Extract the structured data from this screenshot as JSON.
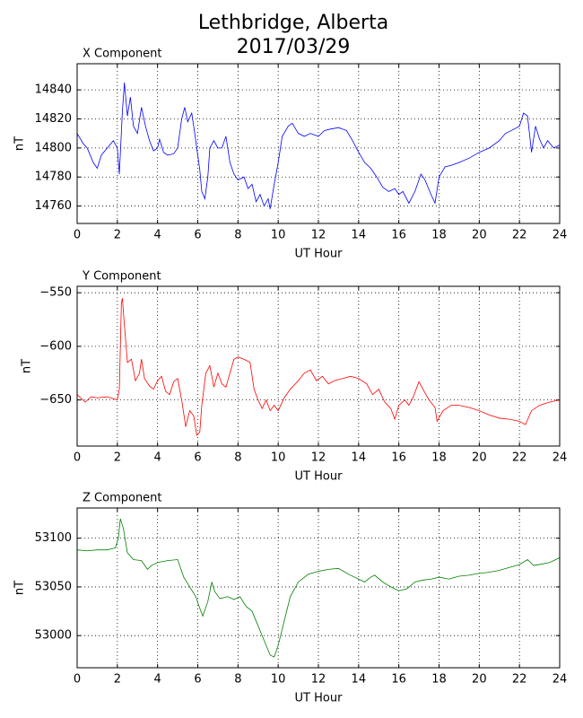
{
  "title": [
    "Lethbridge, Alberta",
    "2017/03/29"
  ],
  "chart_data": [
    {
      "type": "line",
      "title": "X Component",
      "xlabel": "UT Hour",
      "ylabel": "nT",
      "color": "#0000ff",
      "grid": true,
      "xlim": [
        0,
        24
      ],
      "xticks": [
        0,
        2,
        4,
        6,
        8,
        10,
        12,
        14,
        16,
        18,
        20,
        22,
        24
      ],
      "ylim": [
        14748,
        14858
      ],
      "yticks": [
        14760,
        14780,
        14800,
        14820,
        14840
      ],
      "x": [
        0,
        0.3,
        0.5,
        0.8,
        1,
        1.2,
        1.5,
        1.8,
        2.0,
        2.1,
        2.25,
        2.35,
        2.5,
        2.65,
        2.8,
        3,
        3.2,
        3.4,
        3.6,
        3.8,
        4,
        4.1,
        4.3,
        4.5,
        4.8,
        5,
        5.2,
        5.35,
        5.5,
        5.7,
        5.85,
        6,
        6.1,
        6.2,
        6.35,
        6.5,
        6.6,
        6.8,
        7,
        7.2,
        7.4,
        7.6,
        7.8,
        8,
        8.3,
        8.5,
        8.7,
        8.9,
        9.1,
        9.3,
        9.5,
        9.6,
        9.8,
        10,
        10.2,
        10.5,
        10.7,
        11,
        11.3,
        11.6,
        12,
        12.3,
        12.6,
        13,
        13.4,
        13.7,
        14,
        14.3,
        14.6,
        14.9,
        15.2,
        15.5,
        15.8,
        16,
        16.2,
        16.5,
        16.8,
        17.1,
        17.3,
        17.6,
        17.8,
        18,
        18.3,
        18.6,
        19,
        19.5,
        20,
        20.5,
        21,
        21.3,
        21.6,
        22,
        22.2,
        22.4,
        22.6,
        22.8,
        23,
        23.2,
        23.4,
        23.7,
        24
      ],
      "values": [
        14810,
        14803,
        14800,
        14790,
        14786,
        14795,
        14800,
        14805,
        14800,
        14782,
        14825,
        14845,
        14822,
        14835,
        14815,
        14810,
        14828,
        14815,
        14805,
        14798,
        14800,
        14806,
        14797,
        14795,
        14796,
        14800,
        14820,
        14828,
        14818,
        14824,
        14810,
        14795,
        14785,
        14770,
        14765,
        14780,
        14800,
        14805,
        14800,
        14800,
        14808,
        14790,
        14782,
        14778,
        14780,
        14772,
        14775,
        14763,
        14768,
        14760,
        14765,
        14758,
        14775,
        14790,
        14808,
        14815,
        14817,
        14810,
        14808,
        14810,
        14808,
        14812,
        14813,
        14814,
        14812,
        14805,
        14797,
        14790,
        14786,
        14780,
        14773,
        14770,
        14772,
        14768,
        14770,
        14762,
        14770,
        14782,
        14778,
        14768,
        14762,
        14780,
        14787,
        14788,
        14790,
        14793,
        14797,
        14800,
        14805,
        14810,
        14812,
        14815,
        14824,
        14822,
        14797,
        14815,
        14806,
        14800,
        14805,
        14800,
        14802
      ]
    },
    {
      "type": "line",
      "title": "Y Component",
      "xlabel": "UT Hour",
      "ylabel": "nT",
      "color": "#ff0000",
      "grid": true,
      "xlim": [
        0,
        24
      ],
      "xticks": [
        0,
        2,
        4,
        6,
        8,
        10,
        12,
        14,
        16,
        18,
        20,
        22,
        24
      ],
      "ylim": [
        -693,
        -544
      ],
      "yticks": [
        {
          "value": -550,
          "label": "−550"
        },
        {
          "value": -600,
          "label": "−600"
        },
        {
          "value": -650,
          "label": "−650"
        }
      ],
      "x": [
        0,
        0.4,
        0.7,
        1,
        1.5,
        2,
        2.1,
        2.2,
        2.25,
        2.35,
        2.5,
        2.7,
        2.9,
        3.1,
        3.2,
        3.35,
        3.6,
        3.8,
        4,
        4.2,
        4.4,
        4.6,
        4.8,
        5,
        5.2,
        5.4,
        5.6,
        5.8,
        5.95,
        6.1,
        6.2,
        6.4,
        6.6,
        6.8,
        7,
        7.2,
        7.4,
        7.6,
        7.8,
        8,
        8.3,
        8.6,
        8.8,
        9,
        9.2,
        9.4,
        9.6,
        9.8,
        10,
        10.3,
        10.6,
        11,
        11.3,
        11.6,
        11.9,
        12.2,
        12.5,
        12.8,
        13.2,
        13.6,
        14,
        14.4,
        14.7,
        15,
        15.3,
        15.6,
        15.8,
        16,
        16.3,
        16.5,
        16.7,
        17,
        17.2,
        17.5,
        17.8,
        17.9,
        18.2,
        18.6,
        19,
        19.5,
        20,
        20.5,
        21,
        21.5,
        22,
        22.3,
        22.6,
        23,
        23.5,
        24
      ],
      "values": [
        -645,
        -652,
        -647,
        -648,
        -647,
        -650,
        -640,
        -560,
        -555,
        -580,
        -615,
        -612,
        -632,
        -625,
        -612,
        -630,
        -637,
        -640,
        -632,
        -628,
        -642,
        -645,
        -633,
        -630,
        -650,
        -675,
        -660,
        -665,
        -683,
        -680,
        -655,
        -625,
        -618,
        -638,
        -625,
        -635,
        -638,
        -625,
        -612,
        -610,
        -612,
        -615,
        -640,
        -650,
        -658,
        -650,
        -660,
        -655,
        -660,
        -648,
        -640,
        -632,
        -625,
        -622,
        -632,
        -628,
        -635,
        -632,
        -630,
        -628,
        -630,
        -635,
        -645,
        -640,
        -652,
        -658,
        -668,
        -655,
        -650,
        -655,
        -648,
        -633,
        -640,
        -650,
        -657,
        -670,
        -660,
        -655,
        -655,
        -657,
        -660,
        -664,
        -667,
        -668,
        -670,
        -673,
        -660,
        -655,
        -652,
        -650
      ]
    },
    {
      "type": "line",
      "title": "Z Component",
      "xlabel": "UT Hour",
      "ylabel": "nT",
      "color": "#008000",
      "grid": true,
      "xlim": [
        0,
        24
      ],
      "xticks": [
        0,
        2,
        4,
        6,
        8,
        10,
        12,
        14,
        16,
        18,
        20,
        22,
        24
      ],
      "ylim": [
        52967,
        53131
      ],
      "yticks": [
        53000,
        53050,
        53100
      ],
      "x": [
        0,
        0.5,
        1,
        1.5,
        1.9,
        2.05,
        2.15,
        2.3,
        2.5,
        2.8,
        3.2,
        3.5,
        3.7,
        4,
        4.5,
        5,
        5.3,
        5.6,
        5.9,
        6.1,
        6.25,
        6.5,
        6.7,
        6.85,
        7.1,
        7.5,
        7.8,
        8.1,
        8.4,
        8.7,
        9,
        9.3,
        9.6,
        9.8,
        10,
        10.3,
        10.6,
        11,
        11.5,
        12,
        12.5,
        13,
        13.5,
        14,
        14.3,
        14.6,
        14.8,
        15.2,
        15.6,
        16,
        16.4,
        16.8,
        17.2,
        17.6,
        18,
        18.5,
        19,
        19.5,
        20,
        20.5,
        21,
        21.5,
        22,
        22.4,
        22.7,
        23,
        23.5,
        24
      ],
      "values": [
        53088,
        53087,
        53088,
        53088,
        53090,
        53100,
        53120,
        53110,
        53085,
        53078,
        53077,
        53068,
        53072,
        53075,
        53077,
        53078,
        53060,
        53050,
        53040,
        53028,
        53020,
        53035,
        53055,
        53045,
        53038,
        53040,
        53037,
        53040,
        53030,
        53025,
        53010,
        52995,
        52980,
        52978,
        52990,
        53015,
        53040,
        53055,
        53063,
        53066,
        53068,
        53069,
        53063,
        53058,
        53055,
        53060,
        53062,
        53055,
        53050,
        53046,
        53048,
        53055,
        53057,
        53058,
        53060,
        53058,
        53061,
        53062,
        53064,
        53065,
        53067,
        53070,
        53073,
        53078,
        53072,
        53073,
        53075,
        53080
      ]
    }
  ]
}
